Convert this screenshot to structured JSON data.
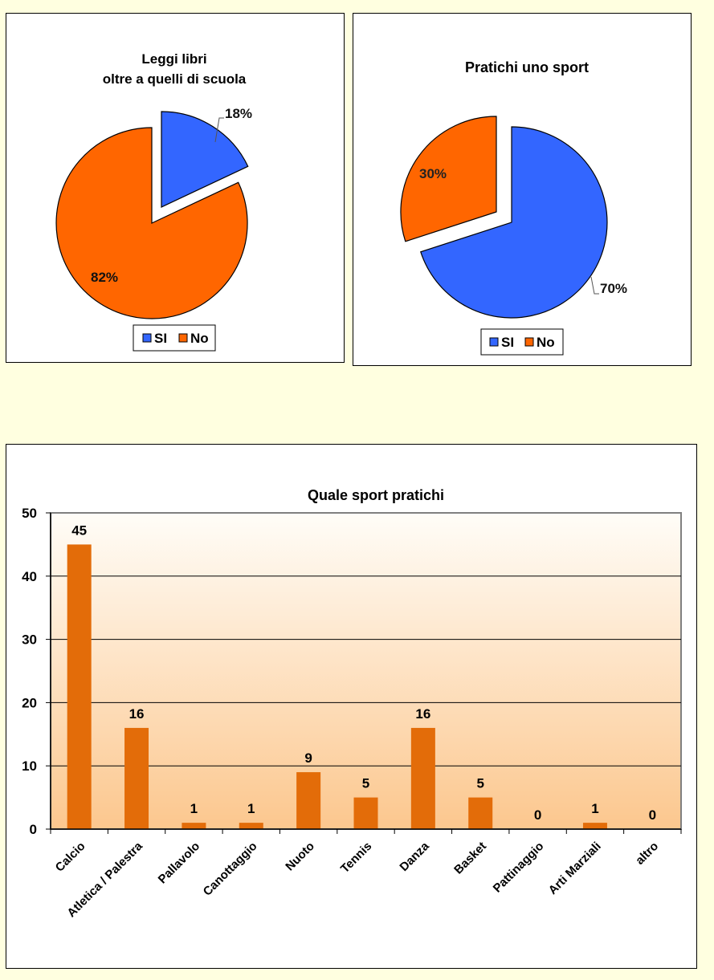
{
  "colors": {
    "background": "#FFFFE0",
    "si": "#3366FF",
    "no": "#FF6600",
    "bar": "#E36C09",
    "plot_top": "#FFFDF8",
    "plot_bottom": "#FCC78E"
  },
  "pie1": {
    "title_line1": "Leggi libri",
    "title_line2": "oltre  a quelli  di scuola",
    "label_si": "18%",
    "label_no": "82%",
    "legend_si": "SI",
    "legend_no": "No"
  },
  "pie2": {
    "title": "Pratichi  uno sport",
    "label_si": "70%",
    "label_no": "30%",
    "legend_si": "SI",
    "legend_no": "No"
  },
  "bar": {
    "title": "Quale sport pratichi",
    "yticks": [
      "0",
      "10",
      "20",
      "30",
      "40",
      "50"
    ],
    "categories": [
      "Calcio",
      "Atletica / Palestra",
      "Pallavolo",
      "Canottaggio",
      "Nuoto",
      "Tennis",
      "Danza",
      "Basket",
      "Pattinaggio",
      "Arti Marziali",
      "altro"
    ],
    "values": [
      45,
      16,
      1,
      1,
      9,
      5,
      16,
      5,
      0,
      1,
      0
    ],
    "value_labels": [
      "45",
      "16",
      "1",
      "1",
      "9",
      "5",
      "16",
      "5",
      "0",
      "1",
      "0"
    ]
  },
  "chart_data": [
    {
      "type": "pie",
      "title": "Leggi libri oltre a quelli di scuola",
      "categories": [
        "SI",
        "No"
      ],
      "values": [
        18,
        82
      ],
      "unit": "%",
      "legend_position": "bottom",
      "exploded": "SI"
    },
    {
      "type": "pie",
      "title": "Pratichi uno sport",
      "categories": [
        "SI",
        "No"
      ],
      "values": [
        70,
        30
      ],
      "unit": "%",
      "legend_position": "bottom",
      "exploded": "No"
    },
    {
      "type": "bar",
      "title": "Quale sport pratichi",
      "categories": [
        "Calcio",
        "Atletica / Palestra",
        "Pallavolo",
        "Canottaggio",
        "Nuoto",
        "Tennis",
        "Danza",
        "Basket",
        "Pattinaggio",
        "Arti Marziali",
        "altro"
      ],
      "values": [
        45,
        16,
        1,
        1,
        9,
        5,
        16,
        5,
        0,
        1,
        0
      ],
      "xlabel": "",
      "ylabel": "",
      "ylim": [
        0,
        50
      ],
      "yticks": [
        0,
        10,
        20,
        30,
        40,
        50
      ],
      "grid": true,
      "data_labels": true
    }
  ]
}
